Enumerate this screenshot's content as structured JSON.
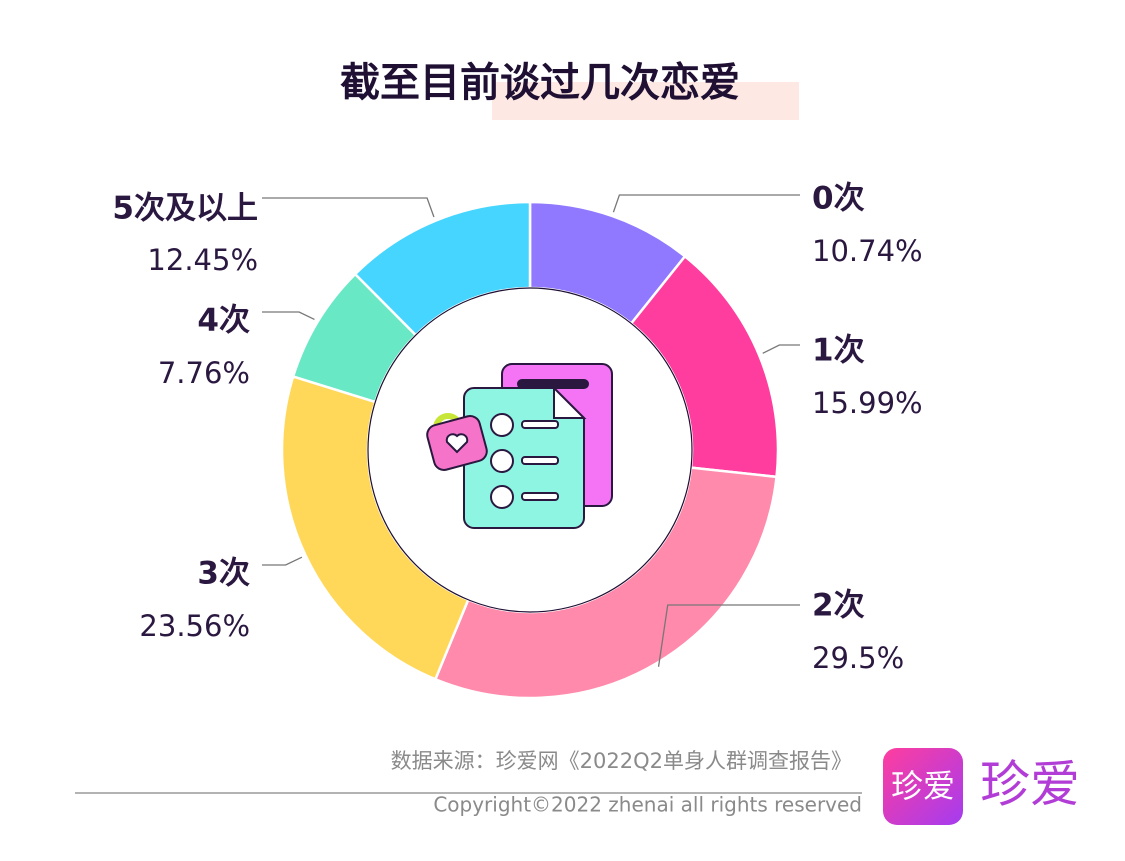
{
  "chart_data": {
    "type": "donut",
    "title": "截至目前谈过几次恋爱",
    "categories": [
      "0次",
      "1次",
      "2次",
      "3次",
      "4次",
      "5次及以上"
    ],
    "values": [
      10.74,
      15.99,
      29.5,
      23.56,
      7.76,
      12.45
    ],
    "value_labels": [
      "10.74%",
      "15.99%",
      "29.5%",
      "23.56%",
      "7.76%",
      "12.45%"
    ],
    "colors": [
      "#9079ff",
      "#ff3d9e",
      "#ff8aab",
      "#ffd85a",
      "#68e8c5",
      "#46d5ff"
    ]
  },
  "footer": {
    "source": "数据来源：珍爱网《2022Q2单身人群调查报告》",
    "copyright": "Copyright©2022  zhenai  all rights reserved",
    "logo_badge": "珍爱",
    "logo_text": "珍爱"
  }
}
